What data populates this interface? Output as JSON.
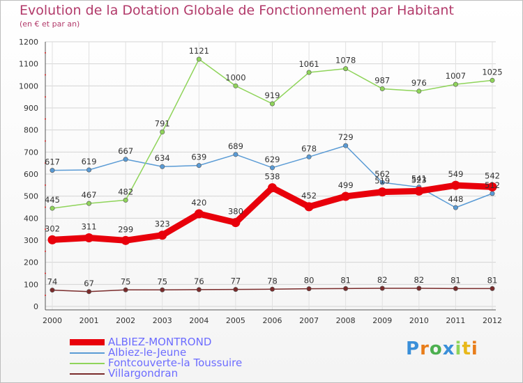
{
  "chart_data": {
    "type": "line",
    "title": "Evolution de la Dotation Globale de Fonctionnement par Habitant",
    "subtitle": "(en € et par an)",
    "xlabel": "",
    "ylabel": "",
    "x": [
      "2000",
      "2001",
      "2002",
      "2003",
      "2004",
      "2005",
      "2006",
      "2007",
      "2008",
      "2009",
      "2010",
      "2011",
      "2012"
    ],
    "ylim": [
      0,
      1200
    ],
    "yticks": [
      0,
      100,
      200,
      300,
      400,
      500,
      600,
      700,
      800,
      900,
      1000,
      1100,
      1200
    ],
    "grid": true,
    "legend_position": "bottom-left",
    "series": [
      {
        "name": "ALBIEZ-MONTROND",
        "color": "#e8000b",
        "emphasis": true,
        "values": [
          302,
          311,
          299,
          323,
          420,
          380,
          538,
          452,
          499,
          519,
          523,
          549,
          542
        ]
      },
      {
        "name": "Albiez-le-Jeune",
        "color": "#5a9bd5",
        "emphasis": false,
        "values": [
          617,
          619,
          667,
          634,
          639,
          689,
          629,
          678,
          729,
          562,
          541,
          448,
          512
        ]
      },
      {
        "name": "Fontcouverte-la Toussuire",
        "color": "#8fd45a",
        "emphasis": false,
        "values": [
          445,
          467,
          482,
          791,
          1121,
          1000,
          919,
          1061,
          1078,
          987,
          976,
          1007,
          1025
        ]
      },
      {
        "name": "Villargondran",
        "color": "#7a2b2b",
        "emphasis": false,
        "values": [
          74,
          67,
          75,
          75,
          76,
          77,
          78,
          80,
          81,
          82,
          82,
          81,
          81
        ]
      }
    ]
  },
  "logo": {
    "text": "Proxiti",
    "letter_colors": [
      "#3a8fd9",
      "#e87d1a",
      "#4caf50",
      "#3a8fd9",
      "#8fd45a",
      "#e8b81a",
      "#e87d1a"
    ]
  }
}
